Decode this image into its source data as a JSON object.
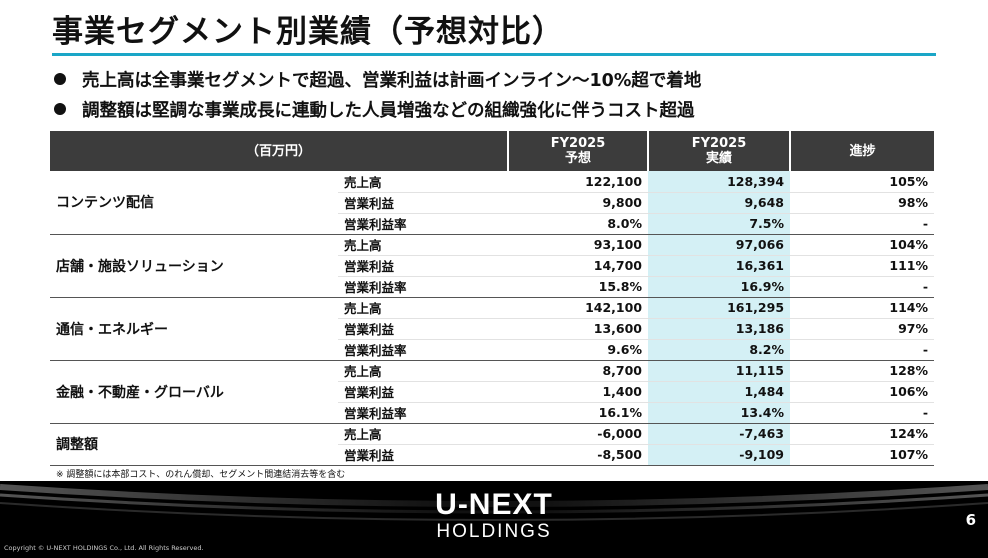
{
  "slide": {
    "title": "事業セグメント別業績（予想対比）",
    "bullets": [
      "売上高は全事業セグメントで超過、営業利益は計画インライン～10%超で着地",
      "調整額は堅調な事業成長に連動した人員増強などの組織強化に伴うコスト超過"
    ],
    "accent_color": "#1aa6c7",
    "highlight_color": "#d4f0f5"
  },
  "table": {
    "headers": {
      "unit": "（百万円）",
      "forecast_year": "FY2025",
      "forecast_label": "予想",
      "actual_year": "FY2025",
      "actual_label": "実績",
      "progress": "進捗"
    },
    "segments": [
      {
        "name": "コンテンツ配信",
        "rows": [
          {
            "metric": "売上高",
            "forecast": "122,100",
            "actual": "128,394",
            "progress": "105%"
          },
          {
            "metric": "営業利益",
            "forecast": "9,800",
            "actual": "9,648",
            "progress": "98%"
          },
          {
            "metric": "営業利益率",
            "forecast": "8.0%",
            "actual": "7.5%",
            "progress": "-"
          }
        ]
      },
      {
        "name": "店舗・施設ソリューション",
        "rows": [
          {
            "metric": "売上高",
            "forecast": "93,100",
            "actual": "97,066",
            "progress": "104%"
          },
          {
            "metric": "営業利益",
            "forecast": "14,700",
            "actual": "16,361",
            "progress": "111%"
          },
          {
            "metric": "営業利益率",
            "forecast": "15.8%",
            "actual": "16.9%",
            "progress": "-"
          }
        ]
      },
      {
        "name": "通信・エネルギー",
        "rows": [
          {
            "metric": "売上高",
            "forecast": "142,100",
            "actual": "161,295",
            "progress": "114%"
          },
          {
            "metric": "営業利益",
            "forecast": "13,600",
            "actual": "13,186",
            "progress": "97%"
          },
          {
            "metric": "営業利益率",
            "forecast": "9.6%",
            "actual": "8.2%",
            "progress": "-"
          }
        ]
      },
      {
        "name": "金融・不動産・グローバル",
        "rows": [
          {
            "metric": "売上高",
            "forecast": "8,700",
            "actual": "11,115",
            "progress": "128%"
          },
          {
            "metric": "営業利益",
            "forecast": "1,400",
            "actual": "1,484",
            "progress": "106%"
          },
          {
            "metric": "営業利益率",
            "forecast": "16.1%",
            "actual": "13.4%",
            "progress": "-"
          }
        ]
      },
      {
        "name": "調整額",
        "rows": [
          {
            "metric": "売上高",
            "forecast": "-6,000",
            "actual": "-7,463",
            "progress": "124%"
          },
          {
            "metric": "営業利益",
            "forecast": "-8,500",
            "actual": "-9,109",
            "progress": "107%"
          }
        ]
      }
    ]
  },
  "footnote": "※ 調整額には本部コスト、のれん償却、セグメント間連結消去等を含む",
  "footer": {
    "logo_main": "U-NEXT",
    "logo_sub": "HOLDINGS",
    "page_number": "6",
    "copyright": "Copyright © U-NEXT HOLDINGS Co., Ltd. All Rights Reserved."
  }
}
